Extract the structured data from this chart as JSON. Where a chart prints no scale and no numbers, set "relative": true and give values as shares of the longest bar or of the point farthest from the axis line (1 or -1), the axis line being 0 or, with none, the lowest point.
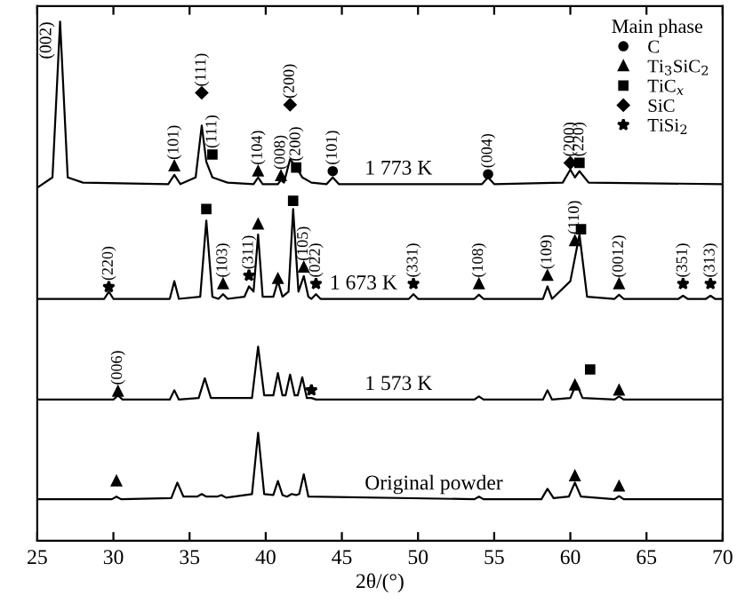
{
  "chart_data": {
    "type": "line",
    "relative": true,
    "xlabel": "2θ/(°)",
    "xlim": [
      25,
      70
    ],
    "xticks": [
      25,
      30,
      35,
      40,
      45,
      50,
      55,
      60,
      65,
      70
    ],
    "legend": "top right",
    "legend_title": "Main phase",
    "grid": false,
    "series": [
      {
        "name": "1 773 K",
        "color": "#000000",
        "x": [
          25,
          26.0,
          26.5,
          27.0,
          28,
          33.6,
          34.0,
          34.4,
          35.4,
          35.8,
          36.1,
          36.5,
          37.5,
          39.2,
          39.5,
          39.8,
          40.8,
          41.0,
          41.2,
          41.6,
          42.0,
          42.4,
          43.0,
          44.0,
          44.4,
          44.8,
          54.2,
          54.6,
          55.0,
          59.5,
          60.0,
          60.3,
          60.6,
          61.2,
          70
        ],
        "values": [
          0.68,
          0.7,
          1.0,
          0.7,
          0.69,
          0.687,
          0.705,
          0.687,
          0.7,
          0.8,
          0.73,
          0.7,
          0.69,
          0.687,
          0.7,
          0.687,
          0.687,
          0.695,
          0.69,
          0.735,
          0.72,
          0.7,
          0.69,
          0.687,
          0.7,
          0.687,
          0.687,
          0.7,
          0.687,
          0.69,
          0.715,
          0.7,
          0.712,
          0.69,
          0.687
        ]
      },
      {
        "name": "1 673 K",
        "color": "#000000",
        "x": [
          25,
          29.4,
          29.7,
          30.0,
          33.7,
          34.0,
          34.3,
          35.7,
          36.1,
          36.5,
          36.9,
          37.2,
          37.5,
          38.6,
          38.9,
          39.2,
          39.5,
          39.8,
          40.5,
          40.8,
          41.1,
          41.5,
          41.8,
          42.15,
          42.5,
          42.8,
          43.0,
          43.3,
          43.6,
          49.4,
          49.7,
          50.0,
          53.7,
          54.0,
          54.3,
          58.2,
          58.5,
          58.8,
          60.0,
          60.6,
          61.1,
          62.9,
          63.2,
          63.5,
          67.1,
          67.4,
          67.7,
          68.9,
          69.2,
          69.5,
          70
        ],
        "values": [
          0.466,
          0.466,
          0.48,
          0.466,
          0.466,
          0.5,
          0.466,
          0.47,
          0.617,
          0.47,
          0.466,
          0.475,
          0.466,
          0.47,
          0.49,
          0.48,
          0.59,
          0.47,
          0.47,
          0.5,
          0.47,
          0.48,
          0.639,
          0.48,
          0.51,
          0.47,
          0.466,
          0.475,
          0.466,
          0.466,
          0.475,
          0.466,
          0.466,
          0.474,
          0.466,
          0.466,
          0.49,
          0.466,
          0.5,
          0.59,
          0.47,
          0.466,
          0.474,
          0.466,
          0.466,
          0.472,
          0.466,
          0.466,
          0.472,
          0.466,
          0.466
        ]
      },
      {
        "name": "1 573 K",
        "color": "#000000",
        "x": [
          25,
          30.0,
          30.3,
          30.6,
          33.7,
          34.0,
          34.3,
          35.6,
          36.0,
          36.4,
          39.1,
          39.5,
          39.9,
          40.5,
          40.8,
          41.1,
          41.3,
          41.6,
          41.9,
          42.1,
          42.4,
          42.7,
          43.0,
          43.3,
          53.7,
          54.0,
          54.3,
          58.2,
          58.5,
          58.8,
          60.0,
          60.4,
          60.8,
          62.9,
          63.2,
          63.5,
          70
        ],
        "values": [
          0.272,
          0.272,
          0.28,
          0.272,
          0.272,
          0.29,
          0.272,
          0.275,
          0.313,
          0.275,
          0.275,
          0.374,
          0.28,
          0.28,
          0.323,
          0.28,
          0.28,
          0.32,
          0.28,
          0.28,
          0.315,
          0.275,
          0.275,
          0.272,
          0.272,
          0.278,
          0.272,
          0.272,
          0.29,
          0.272,
          0.275,
          0.303,
          0.275,
          0.272,
          0.278,
          0.272,
          0.272
        ]
      },
      {
        "name": "Original powder",
        "color": "#000000",
        "x": [
          25,
          29.9,
          30.2,
          30.5,
          33.8,
          34.2,
          34.6,
          35.5,
          35.8,
          36.1,
          36.8,
          37.1,
          37.4,
          39.1,
          39.5,
          39.9,
          40.5,
          40.8,
          41.1,
          41.4,
          41.7,
          42.0,
          42.2,
          42.5,
          42.8,
          53.7,
          54.0,
          54.3,
          58.1,
          58.5,
          58.9,
          59.9,
          60.3,
          60.7,
          62.9,
          63.2,
          63.5,
          70
        ],
        "values": [
          0.08,
          0.08,
          0.085,
          0.08,
          0.082,
          0.112,
          0.085,
          0.085,
          0.09,
          0.085,
          0.085,
          0.088,
          0.083,
          0.09,
          0.208,
          0.09,
          0.088,
          0.115,
          0.088,
          0.085,
          0.09,
          0.088,
          0.09,
          0.128,
          0.085,
          0.08,
          0.085,
          0.08,
          0.08,
          0.1,
          0.082,
          0.085,
          0.112,
          0.085,
          0.08,
          0.086,
          0.08,
          0.08
        ]
      },
      {
        "name": "C",
        "type": "scatter",
        "marker": "circle",
        "color": "#000000",
        "x": [
          44.4,
          54.6
        ],
        "values": [
          0.712,
          0.706
        ]
      },
      {
        "name": "Ti$_{3}$SiC$_{2}$",
        "type": "scatter",
        "marker": "triangle",
        "color": "#000000",
        "x": [
          34.0,
          39.5,
          41.0,
          37.2,
          39.5,
          40.8,
          42.5,
          54.0,
          58.5,
          60.3,
          63.2,
          30.3,
          60.3,
          63.2,
          30.2,
          60.3,
          63.2
        ],
        "values": [
          0.722,
          0.712,
          0.703,
          0.495,
          0.61,
          0.505,
          0.527,
          0.495,
          0.511,
          0.578,
          0.495,
          0.288,
          0.3,
          0.29,
          0.115,
          0.125,
          0.105
        ]
      },
      {
        "name": "TiC$_{x}$",
        "type": "scatter",
        "marker": "square",
        "color": "#000000",
        "x": [
          36.5,
          42.0,
          60.6,
          36.1,
          41.8,
          60.7,
          61.3
        ],
        "values": [
          0.744,
          0.719,
          0.728,
          0.639,
          0.655,
          0.6,
          0.33
        ]
      },
      {
        "name": "SiC",
        "type": "scatter",
        "marker": "diamond",
        "color": "#000000",
        "x": [
          35.8,
          41.6,
          60.0
        ],
        "values": [
          0.863,
          0.84,
          0.728
        ]
      },
      {
        "name": "TiSi$_{2}$",
        "type": "scatter",
        "marker": "star",
        "color": "#000000",
        "x": [
          29.7,
          38.9,
          43.3,
          49.7,
          67.4,
          69.2,
          43.0
        ],
        "values": [
          0.489,
          0.511,
          0.495,
          0.495,
          0.495,
          0.495,
          0.29
        ]
      }
    ],
    "annotations": [
      {
        "text": "(002)",
        "x": 26.5,
        "y": 1.0
      },
      {
        "text": "(101)",
        "x": 34.0,
        "y": 0.722
      },
      {
        "text": "(111)",
        "x": 35.8,
        "y": 0.863
      },
      {
        "text": "(111)",
        "x": 36.5,
        "y": 0.744
      },
      {
        "text": "(104)",
        "x": 39.5,
        "y": 0.712
      },
      {
        "text": "(008)",
        "x": 41.0,
        "y": 0.703
      },
      {
        "text": "(200)",
        "x": 41.6,
        "y": 0.84
      },
      {
        "text": "(200)",
        "x": 42.0,
        "y": 0.719
      },
      {
        "text": "(101)",
        "x": 44.4,
        "y": 0.712
      },
      {
        "text": "(004)",
        "x": 54.6,
        "y": 0.706
      },
      {
        "text": "(200)",
        "x": 60.0,
        "y": 0.728
      },
      {
        "text": "(220)",
        "x": 60.6,
        "y": 0.728
      },
      {
        "text": "(220)",
        "x": 29.7,
        "y": 0.489
      },
      {
        "text": "(103)",
        "x": 37.2,
        "y": 0.495
      },
      {
        "text": "(311)",
        "x": 38.9,
        "y": 0.511
      },
      {
        "text": "(105)",
        "x": 42.5,
        "y": 0.527
      },
      {
        "text": "(022)",
        "x": 43.3,
        "y": 0.495
      },
      {
        "text": "(331)",
        "x": 49.7,
        "y": 0.495
      },
      {
        "text": "(108)",
        "x": 54.0,
        "y": 0.495
      },
      {
        "text": "(109)",
        "x": 58.5,
        "y": 0.511
      },
      {
        "text": "(110)",
        "x": 60.3,
        "y": 0.578
      },
      {
        "text": "(0012)",
        "x": 63.2,
        "y": 0.495
      },
      {
        "text": "(351)",
        "x": 67.4,
        "y": 0.495
      },
      {
        "text": "(313)",
        "x": 69.2,
        "y": 0.495
      },
      {
        "text": "(006)",
        "x": 30.3,
        "y": 0.288
      }
    ]
  }
}
